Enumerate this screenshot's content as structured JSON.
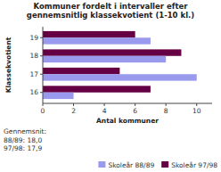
{
  "chart_data": {
    "type": "bar",
    "orientation": "horizontal",
    "title": "Kommuner fordelt i intervaller efter\ngennemsnitlig klassekvotient (1-10 kl.)",
    "categories": [
      16,
      17,
      18,
      19
    ],
    "series": [
      {
        "name": "Skoleår 97/98",
        "color": "#660044",
        "values": [
          7,
          5,
          9,
          6
        ]
      },
      {
        "name": "Skoleår 88/89",
        "color": "#9999ee",
        "values": [
          2,
          10,
          8,
          7
        ]
      }
    ],
    "x_label": "Antal kommuner",
    "y_label": "Klassekvotient",
    "xlim": [
      0,
      11
    ],
    "xticks": [
      0,
      2,
      4,
      6,
      8,
      10
    ],
    "annotations": [
      "Gennemsnit:\n88/89: 18,0\n97/98: 17,9"
    ],
    "legend": "bottom",
    "grid": false
  }
}
